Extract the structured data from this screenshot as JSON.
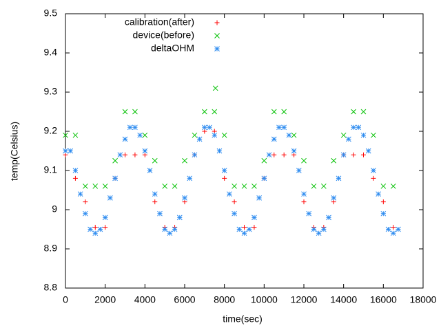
{
  "chart_data": {
    "type": "scatter",
    "x_label": "time(sec)",
    "y_label": "temp(Celsius)",
    "xlim": [
      0,
      18000
    ],
    "ylim": [
      8.8,
      9.5
    ],
    "xticks": [
      0,
      2000,
      4000,
      6000,
      8000,
      10000,
      12000,
      14000,
      16000,
      18000
    ],
    "yticks": [
      8.8,
      8.9,
      9,
      9.1,
      9.2,
      9.3,
      9.4,
      9.5
    ],
    "grid": false,
    "legend": "top-left",
    "series": [
      {
        "name": "calibration(after)",
        "color": "#ff0000",
        "marker": "plus",
        "x": [
          0,
          500,
          1000,
          1500,
          2000,
          2500,
          3000,
          3500,
          4000,
          4500,
          5000,
          5500,
          6000,
          6500,
          7000,
          7500,
          8000,
          8500,
          9000,
          9500,
          10000,
          10500,
          11000,
          11500,
          12000,
          12500,
          13000,
          13500,
          14000,
          14500,
          15000,
          15500,
          16000,
          16500
        ],
        "values": [
          9.14,
          9.08,
          9.02,
          8.955,
          8.955,
          9.08,
          9.14,
          9.14,
          9.14,
          9.02,
          8.955,
          8.955,
          9.02,
          9.14,
          9.2,
          9.2,
          9.08,
          9.02,
          8.955,
          8.955,
          9.08,
          9.14,
          9.14,
          9.14,
          9.02,
          8.955,
          8.955,
          9.02,
          9.14,
          9.14,
          9.14,
          9.08,
          9.02,
          8.955
        ]
      },
      {
        "name": "device(before)",
        "color": "#00c000",
        "marker": "cross",
        "x": [
          0,
          500,
          1000,
          1500,
          2000,
          2500,
          3000,
          3500,
          4000,
          4500,
          5000,
          5500,
          6000,
          6500,
          7000,
          7500,
          7550,
          8000,
          8500,
          9000,
          9500,
          10000,
          10500,
          11000,
          11500,
          12000,
          12500,
          13000,
          13500,
          14000,
          14500,
          15000,
          15500,
          16000,
          16500
        ],
        "values": [
          9.19,
          9.19,
          9.06,
          9.06,
          9.06,
          9.125,
          9.25,
          9.25,
          9.19,
          9.125,
          9.06,
          9.06,
          9.125,
          9.19,
          9.25,
          9.25,
          9.31,
          9.19,
          9.06,
          9.06,
          9.06,
          9.125,
          9.25,
          9.25,
          9.19,
          9.125,
          9.06,
          9.06,
          9.125,
          9.19,
          9.25,
          9.25,
          9.19,
          9.06,
          9.06
        ]
      },
      {
        "name": "deltaOHM",
        "color": "#2e8cf0",
        "marker": "star",
        "x": [
          0,
          250,
          500,
          750,
          1000,
          1250,
          1500,
          1750,
          2000,
          2250,
          2500,
          2750,
          3000,
          3250,
          3500,
          3750,
          4000,
          4250,
          4500,
          4750,
          5000,
          5250,
          5500,
          5750,
          6000,
          6250,
          6500,
          6750,
          7000,
          7250,
          7500,
          7750,
          8000,
          8250,
          8500,
          8750,
          9000,
          9250,
          9500,
          9750,
          10000,
          10250,
          10500,
          10750,
          11000,
          11250,
          11500,
          11750,
          12000,
          12250,
          12500,
          12750,
          13000,
          13250,
          13500,
          13750,
          14000,
          14250,
          14500,
          14750,
          15000,
          15250,
          15500,
          15750,
          16000,
          16250,
          16500,
          16750
        ],
        "values": [
          9.15,
          9.15,
          9.1,
          9.04,
          8.99,
          8.95,
          8.94,
          8.95,
          8.98,
          9.03,
          9.08,
          9.14,
          9.18,
          9.21,
          9.21,
          9.19,
          9.15,
          9.1,
          9.04,
          8.99,
          8.95,
          8.94,
          8.95,
          8.98,
          9.03,
          9.08,
          9.14,
          9.18,
          9.21,
          9.21,
          9.19,
          9.15,
          9.1,
          9.04,
          8.99,
          8.95,
          8.94,
          8.95,
          8.98,
          9.03,
          9.08,
          9.14,
          9.18,
          9.21,
          9.21,
          9.19,
          9.15,
          9.1,
          9.04,
          8.99,
          8.95,
          8.94,
          8.95,
          8.98,
          9.03,
          9.08,
          9.14,
          9.18,
          9.21,
          9.21,
          9.19,
          9.15,
          9.1,
          9.04,
          8.99,
          8.95,
          8.94,
          8.95
        ]
      }
    ]
  }
}
